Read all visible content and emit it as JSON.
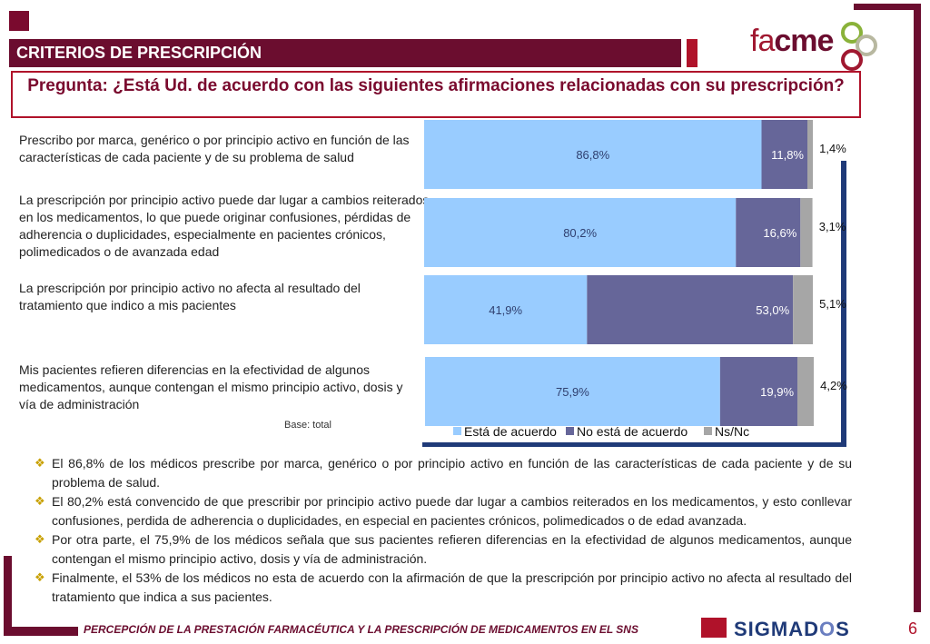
{
  "header": {
    "title": "CRITERIOS DE PRESCRIPCIÓN"
  },
  "logo": {
    "part1": "fa",
    "part2": "cme"
  },
  "question": "Pregunta: ¿Está Ud. de acuerdo con las siguientes afirmaciones relacionadas con su prescripción?",
  "statements": [
    "Prescribo por marca, genérico o por principio activo  en función de las características de cada paciente y de su problema de salud",
    "La prescripción por principio activo puede dar lugar a cambios reiterados en los medicamentos, lo que puede originar confusiones, pérdidas de adherencia o duplicidades, especialmente en pacientes crónicos, polimedicados o de avanzada edad",
    "La prescripción por principio activo no afecta al resultado del tratamiento que indico a mis pacientes",
    "Mis pacientes refieren diferencias en la efectividad de algunos medicamentos, aunque contengan el mismo principio activo, dosis y vía de administración"
  ],
  "base_note": "Base: total",
  "chart_data": {
    "type": "bar",
    "orientation": "horizontal",
    "stacked": true,
    "categories": [
      "Prescribo por marca, genérico o por principio activo en función de las características de cada paciente y de su problema de salud",
      "La prescripción por principio activo puede dar lugar a cambios reiterados en los medicamentos",
      "La prescripción por principio activo no afecta al resultado del tratamiento que indico a mis pacientes",
      "Mis pacientes refieren diferencias en la efectividad de algunos medicamentos"
    ],
    "series": [
      {
        "name": "Está de acuerdo",
        "values": [
          86.8,
          80.2,
          41.9,
          75.9
        ],
        "labels": [
          "86,8%",
          "80,2%",
          "41,9%",
          "75,9%"
        ],
        "color": "#99ccff"
      },
      {
        "name": "No está de acuerdo",
        "values": [
          11.8,
          16.6,
          53.0,
          19.9
        ],
        "labels": [
          "11,8%",
          "16,6%",
          "53,0%",
          "19,9%"
        ],
        "color": "#666699"
      },
      {
        "name": "Ns/Nc",
        "values": [
          1.4,
          3.1,
          5.1,
          4.2
        ],
        "labels": [
          "1,4%",
          "3,1%",
          "5,1%",
          "4,2%"
        ],
        "color": "#a6a6a6"
      }
    ],
    "xlim": [
      0,
      100
    ],
    "legend": "bottom",
    "grid": false
  },
  "bullets": [
    "El 86,8% de los médicos prescribe por marca, genérico o por principio activo en función de las características de cada paciente y de su problema de salud.",
    "El 80,2% está convencido de que prescribir por principio activo puede dar lugar a cambios reiterados en los medicamentos, y esto conllevar   confusiones, perdida de adherencia o duplicidades, en especial en pacientes crónicos, polimedicados o de edad avanzada.",
    "Por otra parte, el 75,9% de los médicos señala que sus pacientes refieren diferencias en la efectividad de algunos medicamentos, aunque contengan el mismo principio activo, dosis y vía de administración.",
    "Finalmente, el 53% de los médicos no esta de acuerdo con la afirmación de que la prescripción por principio activo no afecta al resultado del tratamiento que indica a sus pacientes."
  ],
  "footer": {
    "text": "PERCEPCIÓN DE LA PRESTACIÓN FARMACÉUTICA Y LA PRESCRIPCIÓN DE MEDICAMENTOS EN EL SNS",
    "brand_a": "SIGMAD",
    "brand_b": "O",
    "brand_c": "S",
    "page": "6"
  }
}
